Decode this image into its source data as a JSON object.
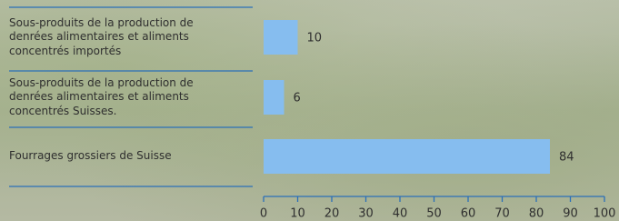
{
  "chart_data": {
    "type": "bar",
    "orientation": "horizontal",
    "categories": [
      "Sous-produits de la production de denrées alimentaires et aliments concentrés importés",
      "Sous-produits de la production de denrées alimentaires et aliments concentrés Suisses.",
      "Fourrages grossiers de Suisse"
    ],
    "values": [
      10,
      6,
      84
    ],
    "color": "#86bdef",
    "xlim": [
      0,
      100
    ],
    "xticks": [
      0,
      10,
      20,
      30,
      40,
      50,
      60,
      70,
      80,
      90,
      100
    ]
  }
}
